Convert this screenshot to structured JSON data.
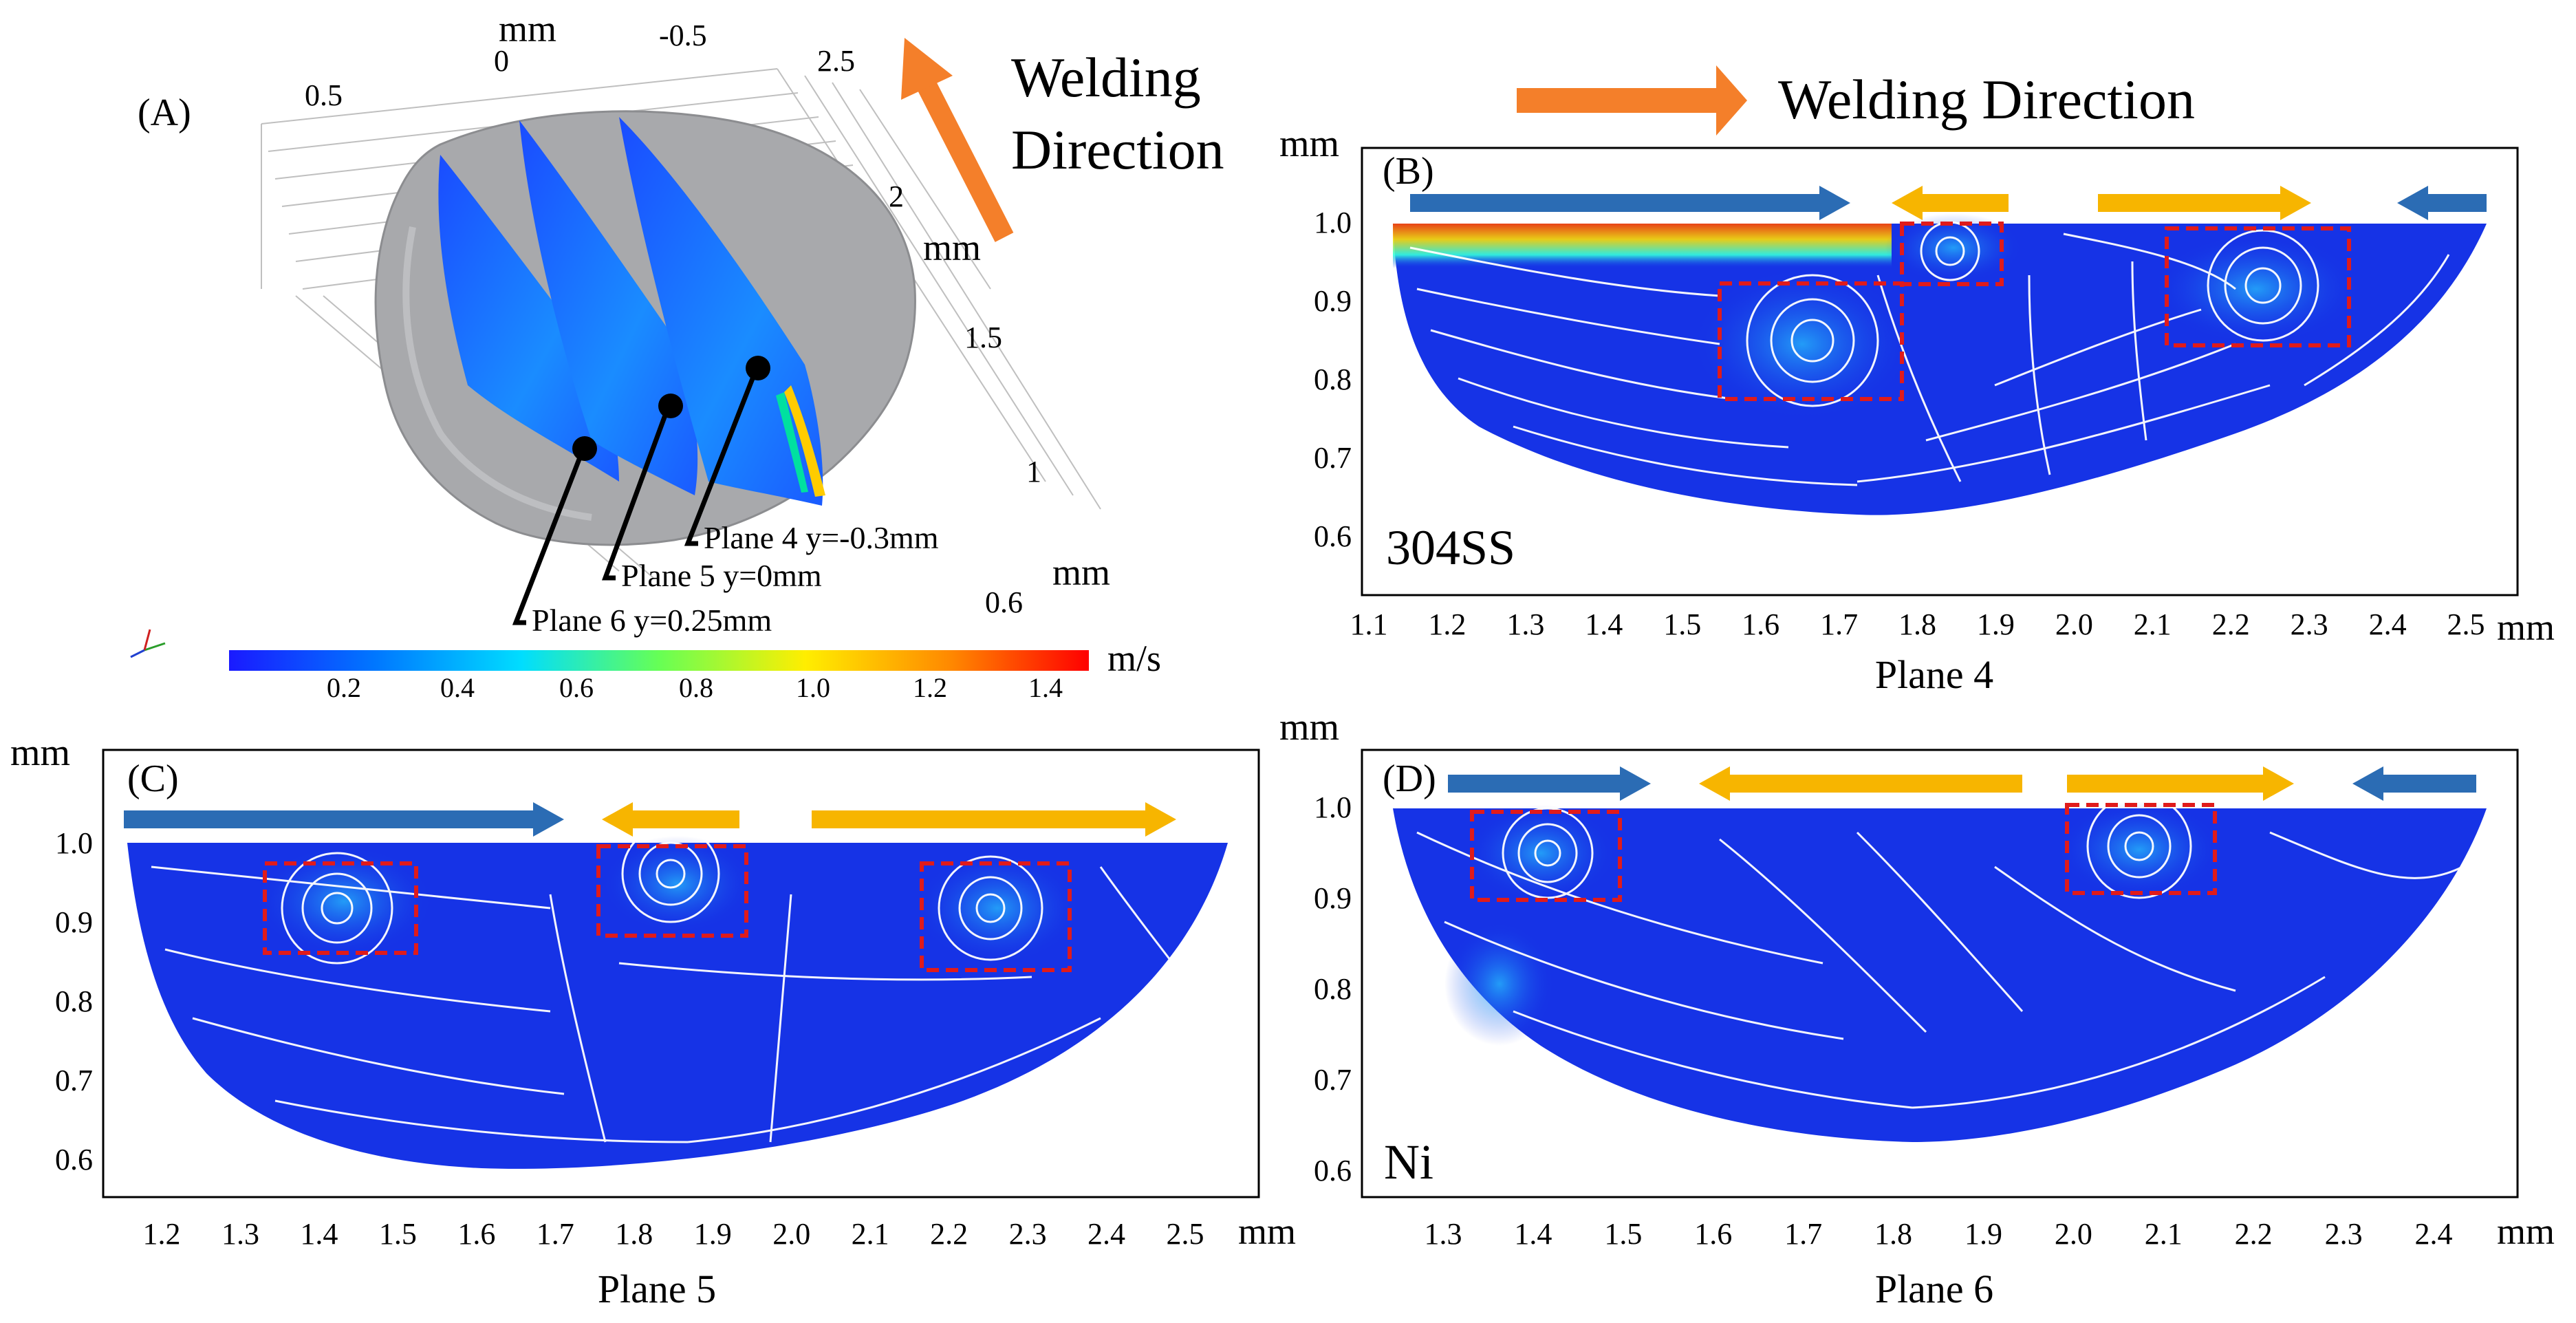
{
  "panel_a": {
    "label": "(A)",
    "axis_unit_top": "mm",
    "axis_unit_mid": "mm",
    "axis_unit_right": "mm",
    "top_ticks": [
      "0.5",
      "0",
      "-0.5",
      "2.5"
    ],
    "right_ticks": [
      "2",
      "1.5",
      "1",
      "0.6"
    ],
    "welding_direction": "Welding\nDirection",
    "welding_line1": "Welding",
    "welding_line2": "Direction",
    "planes": [
      "Plane 4 y=-0.3mm",
      "Plane 5 y=0mm",
      "Plane 6 y=0.25mm"
    ],
    "colorbar": {
      "unit": "m/s",
      "ticks": [
        "0.2",
        "0.4",
        "0.6",
        "0.8",
        "1.0",
        "1.2",
        "1.4"
      ],
      "colors": [
        "#1a1aff",
        "#00aaff",
        "#00ffee",
        "#66ff33",
        "#ffee00",
        "#ff8800",
        "#ff0000"
      ]
    },
    "mesh_color": "#a8a9ac",
    "arrow_color": "#f47f2a"
  },
  "header": {
    "welding_direction": "Welding Direction"
  },
  "panel_b": {
    "label": "(B)",
    "material": "304SS",
    "plane": "Plane 4",
    "unit": "mm",
    "y_ticks": [
      "1.0",
      "0.9",
      "0.8",
      "0.7",
      "0.6"
    ],
    "x_ticks": [
      "1.1",
      "1.2",
      "1.3",
      "1.4",
      "1.5",
      "1.6",
      "1.7",
      "1.8",
      "1.9",
      "2.0",
      "2.1",
      "2.2",
      "2.3",
      "2.4",
      "2.5"
    ]
  },
  "panel_c": {
    "label": "(C)",
    "plane": "Plane 5",
    "unit": "mm",
    "y_ticks": [
      "1.0",
      "0.9",
      "0.8",
      "0.7",
      "0.6"
    ],
    "x_ticks": [
      "1.2",
      "1.3",
      "1.4",
      "1.5",
      "1.6",
      "1.7",
      "1.8",
      "1.9",
      "2.0",
      "2.1",
      "2.2",
      "2.3",
      "2.4",
      "2.5"
    ]
  },
  "panel_d": {
    "label": "(D)",
    "material": "Ni",
    "plane": "Plane 6",
    "unit": "mm",
    "y_ticks": [
      "1.0",
      "0.9",
      "0.8",
      "0.7",
      "0.6"
    ],
    "x_ticks": [
      "1.3",
      "1.4",
      "1.5",
      "1.6",
      "1.7",
      "1.8",
      "1.9",
      "2.0",
      "2.1",
      "2.2",
      "2.3",
      "2.4"
    ]
  },
  "colors": {
    "flow_blue": "#1633e6",
    "arrow_blue": "#2b6cb4",
    "arrow_yellow": "#f7b500",
    "box_red": "#e01b1b"
  }
}
